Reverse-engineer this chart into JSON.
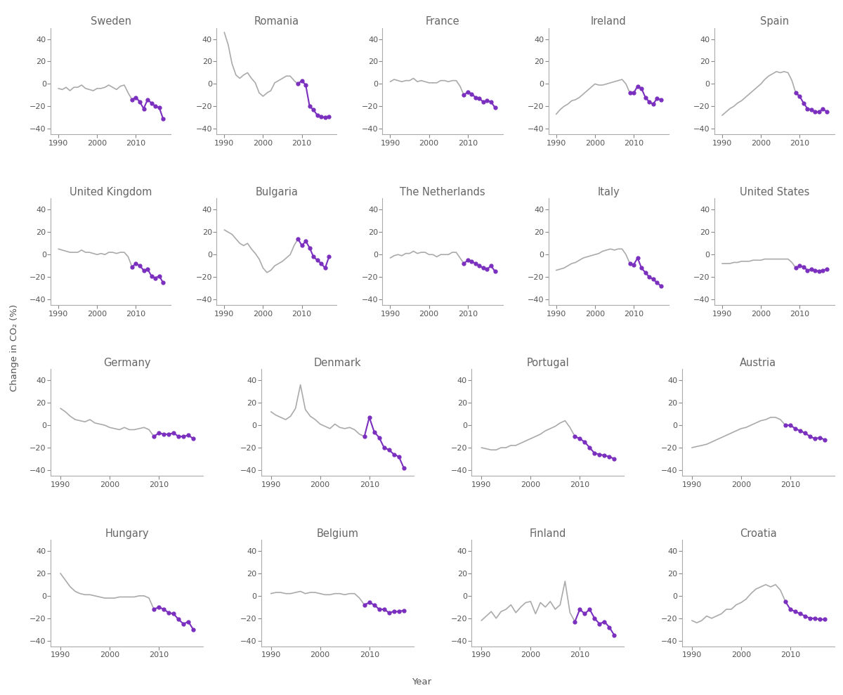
{
  "row_layout": [
    [
      "Sweden",
      "Romania",
      "France",
      "Ireland",
      "Spain"
    ],
    [
      "United Kingdom",
      "Bulgaria",
      "The Netherlands",
      "Italy",
      "United States"
    ],
    [
      "Germany",
      "Denmark",
      "Portugal",
      "Austria"
    ],
    [
      "Hungary",
      "Belgium",
      "Finland",
      "Croatia"
    ]
  ],
  "ylim": [
    -45,
    50
  ],
  "yticks": [
    -40,
    -20,
    0,
    20,
    40
  ],
  "xticks": [
    1990,
    2000,
    2010
  ],
  "gray_color": "#aaaaaa",
  "purple_color": "#7b2fbe",
  "purple_start_year": 2009,
  "background_color": "white",
  "title_fontsize": 10.5,
  "tick_fontsize": 8,
  "ylabel": "Change in CO₂ (%)",
  "xlabel": "Year",
  "data": {
    "Sweden": {
      "years": [
        1990,
        1991,
        1992,
        1993,
        1994,
        1995,
        1996,
        1997,
        1998,
        1999,
        2000,
        2001,
        2002,
        2003,
        2004,
        2005,
        2006,
        2007,
        2008,
        2009,
        2010,
        2011,
        2012,
        2013,
        2014,
        2015,
        2016,
        2017
      ],
      "values": [
        -4,
        -5,
        -3,
        -6,
        -3,
        -3,
        -1,
        -4,
        -5,
        -6,
        -4,
        -4,
        -3,
        -1,
        -3,
        -5,
        -2,
        -1,
        -8,
        -14,
        -12,
        -16,
        -22,
        -14,
        -17,
        -20,
        -21,
        -31
      ]
    },
    "Romania": {
      "years": [
        1990,
        1991,
        1992,
        1993,
        1994,
        1995,
        1996,
        1997,
        1998,
        1999,
        2000,
        2001,
        2002,
        2003,
        2004,
        2005,
        2006,
        2007,
        2008,
        2009,
        2010,
        2011,
        2012,
        2013,
        2014,
        2015,
        2016,
        2017
      ],
      "values": [
        46,
        35,
        18,
        8,
        5,
        8,
        10,
        5,
        1,
        -8,
        -11,
        -8,
        -6,
        1,
        3,
        5,
        7,
        7,
        3,
        0,
        3,
        -1,
        -20,
        -23,
        -28,
        -29,
        -30,
        -29
      ]
    },
    "France": {
      "years": [
        1990,
        1991,
        1992,
        1993,
        1994,
        1995,
        1996,
        1997,
        1998,
        1999,
        2000,
        2001,
        2002,
        2003,
        2004,
        2005,
        2006,
        2007,
        2008,
        2009,
        2010,
        2011,
        2012,
        2013,
        2014,
        2015,
        2016,
        2017
      ],
      "values": [
        2,
        4,
        3,
        2,
        3,
        3,
        5,
        2,
        3,
        2,
        1,
        1,
        1,
        3,
        3,
        2,
        3,
        3,
        -2,
        -10,
        -7,
        -9,
        -12,
        -13,
        -16,
        -15,
        -16,
        -21
      ]
    },
    "Ireland": {
      "years": [
        1990,
        1991,
        1992,
        1993,
        1994,
        1995,
        1996,
        1997,
        1998,
        1999,
        2000,
        2001,
        2002,
        2003,
        2004,
        2005,
        2006,
        2007,
        2008,
        2009,
        2010,
        2011,
        2012,
        2013,
        2014,
        2015,
        2016,
        2017
      ],
      "values": [
        -27,
        -23,
        -20,
        -18,
        -15,
        -14,
        -12,
        -9,
        -6,
        -3,
        0,
        -1,
        -1,
        0,
        1,
        2,
        3,
        4,
        0,
        -8,
        -8,
        -2,
        -4,
        -12,
        -16,
        -18,
        -13,
        -14
      ]
    },
    "Spain": {
      "years": [
        1990,
        1991,
        1992,
        1993,
        1994,
        1995,
        1996,
        1997,
        1998,
        1999,
        2000,
        2001,
        2002,
        2003,
        2004,
        2005,
        2006,
        2007,
        2008,
        2009,
        2010,
        2011,
        2012,
        2013,
        2014,
        2015,
        2016,
        2017
      ],
      "values": [
        -28,
        -25,
        -22,
        -20,
        -17,
        -15,
        -12,
        -9,
        -6,
        -3,
        0,
        4,
        7,
        9,
        11,
        10,
        11,
        10,
        3,
        -8,
        -11,
        -17,
        -22,
        -23,
        -25,
        -25,
        -22,
        -25
      ]
    },
    "United Kingdom": {
      "years": [
        1990,
        1991,
        1992,
        1993,
        1994,
        1995,
        1996,
        1997,
        1998,
        1999,
        2000,
        2001,
        2002,
        2003,
        2004,
        2005,
        2006,
        2007,
        2008,
        2009,
        2010,
        2011,
        2012,
        2013,
        2014,
        2015,
        2016,
        2017
      ],
      "values": [
        5,
        4,
        3,
        2,
        2,
        2,
        4,
        2,
        2,
        1,
        0,
        1,
        0,
        2,
        2,
        1,
        2,
        2,
        -2,
        -11,
        -8,
        -10,
        -14,
        -13,
        -19,
        -21,
        -19,
        -25
      ]
    },
    "Bulgaria": {
      "years": [
        1990,
        1991,
        1992,
        1993,
        1994,
        1995,
        1996,
        1997,
        1998,
        1999,
        2000,
        2001,
        2002,
        2003,
        2004,
        2005,
        2006,
        2007,
        2008,
        2009,
        2010,
        2011,
        2012,
        2013,
        2014,
        2015,
        2016,
        2017
      ],
      "values": [
        22,
        20,
        18,
        14,
        10,
        8,
        10,
        5,
        1,
        -4,
        -12,
        -16,
        -14,
        -10,
        -8,
        -6,
        -3,
        0,
        8,
        14,
        8,
        12,
        6,
        -2,
        -5,
        -8,
        -12,
        -2
      ]
    },
    "The Netherlands": {
      "years": [
        1990,
        1991,
        1992,
        1993,
        1994,
        1995,
        1996,
        1997,
        1998,
        1999,
        2000,
        2001,
        2002,
        2003,
        2004,
        2005,
        2006,
        2007,
        2008,
        2009,
        2010,
        2011,
        2012,
        2013,
        2014,
        2015,
        2016,
        2017
      ],
      "values": [
        -3,
        -1,
        0,
        -1,
        1,
        1,
        3,
        1,
        2,
        2,
        0,
        0,
        -2,
        0,
        0,
        0,
        2,
        2,
        -3,
        -8,
        -5,
        -6,
        -8,
        -10,
        -12,
        -13,
        -10,
        -15
      ]
    },
    "Italy": {
      "years": [
        1990,
        1991,
        1992,
        1993,
        1994,
        1995,
        1996,
        1997,
        1998,
        1999,
        2000,
        2001,
        2002,
        2003,
        2004,
        2005,
        2006,
        2007,
        2008,
        2009,
        2010,
        2011,
        2012,
        2013,
        2014,
        2015,
        2016,
        2017
      ],
      "values": [
        -14,
        -13,
        -12,
        -10,
        -8,
        -7,
        -5,
        -3,
        -2,
        -1,
        0,
        1,
        3,
        4,
        5,
        4,
        5,
        5,
        0,
        -8,
        -9,
        -3,
        -12,
        -16,
        -20,
        -22,
        -25,
        -28
      ]
    },
    "United States": {
      "years": [
        1990,
        1991,
        1992,
        1993,
        1994,
        1995,
        1996,
        1997,
        1998,
        1999,
        2000,
        2001,
        2002,
        2003,
        2004,
        2005,
        2006,
        2007,
        2008,
        2009,
        2010,
        2011,
        2012,
        2013,
        2014,
        2015,
        2016,
        2017
      ],
      "values": [
        -8,
        -8,
        -8,
        -7,
        -7,
        -6,
        -6,
        -6,
        -5,
        -5,
        -5,
        -4,
        -4,
        -4,
        -4,
        -4,
        -4,
        -4,
        -7,
        -12,
        -10,
        -11,
        -14,
        -13,
        -14,
        -15,
        -14,
        -13
      ]
    },
    "Germany": {
      "years": [
        1990,
        1991,
        1992,
        1993,
        1994,
        1995,
        1996,
        1997,
        1998,
        1999,
        2000,
        2001,
        2002,
        2003,
        2004,
        2005,
        2006,
        2007,
        2008,
        2009,
        2010,
        2011,
        2012,
        2013,
        2014,
        2015,
        2016,
        2017
      ],
      "values": [
        15,
        12,
        8,
        5,
        4,
        3,
        5,
        2,
        1,
        0,
        -2,
        -3,
        -4,
        -2,
        -4,
        -4,
        -3,
        -2,
        -4,
        -10,
        -7,
        -8,
        -8,
        -7,
        -10,
        -10,
        -9,
        -12
      ]
    },
    "Denmark": {
      "years": [
        1990,
        1991,
        1992,
        1993,
        1994,
        1995,
        1996,
        1997,
        1998,
        1999,
        2000,
        2001,
        2002,
        2003,
        2004,
        2005,
        2006,
        2007,
        2008,
        2009,
        2010,
        2011,
        2012,
        2013,
        2014,
        2015,
        2016,
        2017
      ],
      "values": [
        12,
        9,
        7,
        5,
        8,
        15,
        36,
        14,
        8,
        5,
        1,
        -1,
        -3,
        1,
        -2,
        -3,
        -2,
        -4,
        -8,
        -10,
        7,
        -6,
        -11,
        -20,
        -22,
        -26,
        -28,
        -38
      ]
    },
    "Portugal": {
      "years": [
        1990,
        1991,
        1992,
        1993,
        1994,
        1995,
        1996,
        1997,
        1998,
        1999,
        2000,
        2001,
        2002,
        2003,
        2004,
        2005,
        2006,
        2007,
        2008,
        2009,
        2010,
        2011,
        2012,
        2013,
        2014,
        2015,
        2016,
        2017
      ],
      "values": [
        -20,
        -21,
        -22,
        -22,
        -20,
        -20,
        -18,
        -18,
        -16,
        -14,
        -12,
        -10,
        -8,
        -5,
        -3,
        -1,
        2,
        4,
        -2,
        -10,
        -12,
        -15,
        -20,
        -25,
        -26,
        -27,
        -28,
        -30
      ]
    },
    "Austria": {
      "years": [
        1990,
        1991,
        1992,
        1993,
        1994,
        1995,
        1996,
        1997,
        1998,
        1999,
        2000,
        2001,
        2002,
        2003,
        2004,
        2005,
        2006,
        2007,
        2008,
        2009,
        2010,
        2011,
        2012,
        2013,
        2014,
        2015,
        2016,
        2017
      ],
      "values": [
        -20,
        -19,
        -18,
        -17,
        -15,
        -13,
        -11,
        -9,
        -7,
        -5,
        -3,
        -2,
        0,
        2,
        4,
        5,
        7,
        7,
        5,
        0,
        0,
        -3,
        -5,
        -7,
        -10,
        -12,
        -11,
        -13
      ]
    },
    "Hungary": {
      "years": [
        1990,
        1991,
        1992,
        1993,
        1994,
        1995,
        1996,
        1997,
        1998,
        1999,
        2000,
        2001,
        2002,
        2003,
        2004,
        2005,
        2006,
        2007,
        2008,
        2009,
        2010,
        2011,
        2012,
        2013,
        2014,
        2015,
        2016,
        2017
      ],
      "values": [
        20,
        14,
        8,
        4,
        2,
        1,
        1,
        0,
        -1,
        -2,
        -2,
        -2,
        -1,
        -1,
        -1,
        -1,
        0,
        0,
        -2,
        -12,
        -10,
        -12,
        -15,
        -16,
        -21,
        -25,
        -23,
        -30
      ]
    },
    "Belgium": {
      "years": [
        1990,
        1991,
        1992,
        1993,
        1994,
        1995,
        1996,
        1997,
        1998,
        1999,
        2000,
        2001,
        2002,
        2003,
        2004,
        2005,
        2006,
        2007,
        2008,
        2009,
        2010,
        2011,
        2012,
        2013,
        2014,
        2015,
        2016,
        2017
      ],
      "values": [
        2,
        3,
        3,
        2,
        2,
        3,
        4,
        2,
        3,
        3,
        2,
        1,
        1,
        2,
        2,
        1,
        2,
        2,
        -2,
        -8,
        -6,
        -8,
        -12,
        -12,
        -15,
        -14,
        -14,
        -13
      ]
    },
    "Finland": {
      "years": [
        1990,
        1991,
        1992,
        1993,
        1994,
        1995,
        1996,
        1997,
        1998,
        1999,
        2000,
        2001,
        2002,
        2003,
        2004,
        2005,
        2006,
        2007,
        2008,
        2009,
        2010,
        2011,
        2012,
        2013,
        2014,
        2015,
        2016,
        2017
      ],
      "values": [
        -22,
        -18,
        -14,
        -20,
        -14,
        -12,
        -8,
        -15,
        -10,
        -6,
        -5,
        -16,
        -6,
        -10,
        -5,
        -12,
        -8,
        13,
        -15,
        -23,
        -12,
        -16,
        -12,
        -20,
        -25,
        -23,
        -28,
        -35
      ]
    },
    "Croatia": {
      "years": [
        1990,
        1991,
        1992,
        1993,
        1994,
        1995,
        1996,
        1997,
        1998,
        1999,
        2000,
        2001,
        2002,
        2003,
        2004,
        2005,
        2006,
        2007,
        2008,
        2009,
        2010,
        2011,
        2012,
        2013,
        2014,
        2015,
        2016,
        2017
      ],
      "values": [
        -22,
        -24,
        -22,
        -18,
        -20,
        -18,
        -16,
        -12,
        -12,
        -8,
        -6,
        -3,
        2,
        6,
        8,
        10,
        8,
        10,
        5,
        -5,
        -12,
        -14,
        -16,
        -18,
        -20,
        -20,
        -21,
        -21
      ]
    }
  }
}
